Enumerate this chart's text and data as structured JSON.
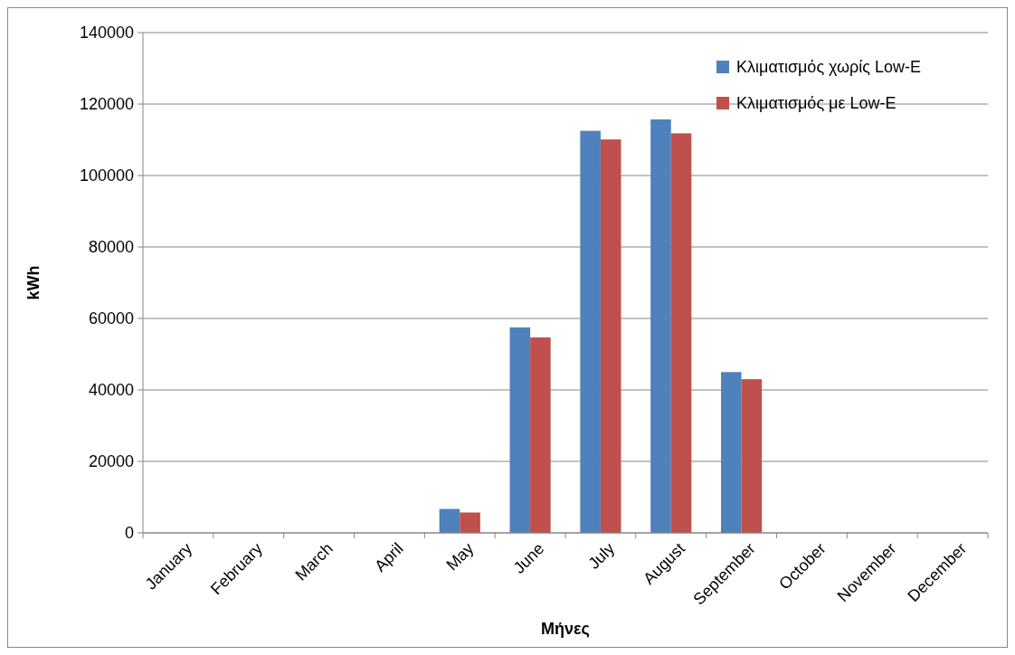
{
  "chart_data": {
    "type": "bar",
    "xlabel": "Μήνες",
    "ylabel": "kWh",
    "categories": [
      "January",
      "February",
      "March",
      "April",
      "May",
      "June",
      "July",
      "August",
      "September",
      "October",
      "November",
      "December"
    ],
    "series": [
      {
        "name": "Κλιματισμός χωρίς Low-E",
        "color": "#4f81bd",
        "values": [
          0,
          0,
          0,
          0,
          6700,
          57500,
          112500,
          115700,
          45000,
          0,
          0,
          0
        ]
      },
      {
        "name": "Κλιματισμός με Low-E",
        "color": "#c0504d",
        "values": [
          0,
          0,
          0,
          0,
          5700,
          54700,
          110100,
          111800,
          43000,
          0,
          0,
          0
        ]
      }
    ],
    "ylim": [
      0,
      140000
    ],
    "yticks": [
      0,
      20000,
      40000,
      60000,
      80000,
      100000,
      120000,
      140000
    ],
    "grid": "y",
    "legend": "top right"
  }
}
